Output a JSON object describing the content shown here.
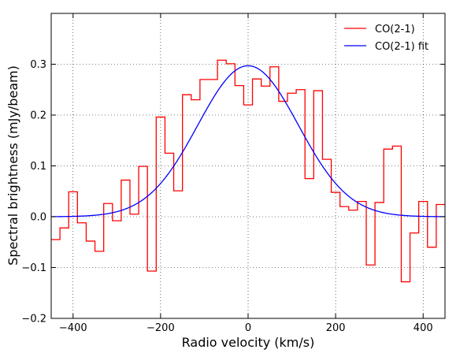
{
  "chart_data": {
    "type": "line",
    "xlabel": "Radio velocity (km/s)",
    "ylabel": "Spectral brightness (mJy/beam)",
    "xlim": [
      -450,
      450
    ],
    "ylim": [
      -0.2,
      0.4
    ],
    "x_ticks": [
      -400,
      -200,
      0,
      200,
      400
    ],
    "y_ticks": [
      -0.2,
      -0.1,
      0.0,
      0.1,
      0.2,
      0.3
    ],
    "x_tick_labels": [
      "−400",
      "−200",
      "0",
      "200",
      "400"
    ],
    "y_tick_labels": [
      "−0.2",
      "−0.1",
      "0.0",
      "0.1",
      "0.2",
      "0.3"
    ],
    "grid": true,
    "legend_position": "top-right",
    "series": [
      {
        "name": "CO(2-1)",
        "style": "steps",
        "color": "#ff0000",
        "x": [
          -440,
          -420,
          -400,
          -380,
          -360,
          -340,
          -320,
          -300,
          -280,
          -260,
          -240,
          -220,
          -200,
          -180,
          -160,
          -140,
          -120,
          -100,
          -80,
          -60,
          -40,
          -20,
          0,
          20,
          40,
          60,
          80,
          100,
          120,
          140,
          160,
          180,
          200,
          220,
          240,
          260,
          280,
          300,
          320,
          340,
          360,
          380,
          400,
          420,
          440
        ],
        "values": [
          -0.045,
          -0.022,
          0.049,
          -0.012,
          -0.048,
          -0.068,
          0.026,
          -0.008,
          0.072,
          0.005,
          0.099,
          -0.107,
          0.196,
          0.125,
          0.051,
          0.24,
          0.23,
          0.27,
          0.27,
          0.308,
          0.301,
          0.258,
          0.22,
          0.271,
          0.257,
          0.295,
          0.227,
          0.243,
          0.25,
          0.075,
          0.248,
          0.113,
          0.048,
          0.02,
          0.013,
          0.03,
          -0.095,
          0.028,
          0.133,
          0.139,
          -0.128,
          -0.032,
          0.03,
          -0.06,
          0.024
        ]
      },
      {
        "name": "CO(2-1) fit",
        "style": "curve",
        "color": "#0000ff",
        "function": "gaussian",
        "amplitude": 0.297,
        "center": 0,
        "sigma": 115
      }
    ]
  }
}
